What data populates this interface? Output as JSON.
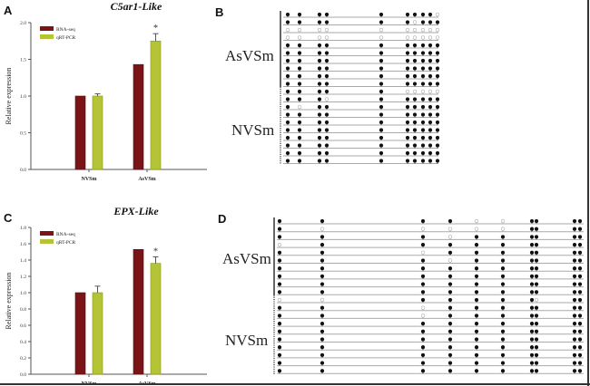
{
  "colors": {
    "rna_seq": "#7a1416",
    "qrt_pcr": "#b5c336",
    "methylated": "#111111",
    "unmethylated": "#ffffff",
    "axis": "#555555"
  },
  "panels": {
    "A": "A",
    "B": "B",
    "C": "C",
    "D": "D"
  },
  "chart_data": [
    {
      "type": "bar",
      "panel": "A",
      "title": "C5ar1-Like",
      "xlabel": "",
      "ylabel": "Relative expression",
      "categories": [
        "NVSm",
        "AsVSm"
      ],
      "ylim": [
        0,
        2.0
      ],
      "yticks": [
        "0.0",
        "0.5",
        "1.0",
        "1.5",
        "2.0"
      ],
      "ytick_values": [
        0,
        0.5,
        1.0,
        1.5,
        2.0
      ],
      "legend": [
        "RNA-seq",
        "qRT-PCR"
      ],
      "legend_position": "top-left",
      "series": [
        {
          "name": "RNA-seq",
          "values": [
            1.0,
            1.43
          ],
          "errors": [
            0,
            0
          ]
        },
        {
          "name": "qRT-PCR",
          "values": [
            1.0,
            1.75
          ],
          "errors": [
            0.03,
            0.1
          ]
        }
      ],
      "annotations": [
        {
          "category": "AsVSm",
          "series": "qRT-PCR",
          "text": "*"
        }
      ]
    },
    {
      "type": "bar",
      "panel": "C",
      "title": "EPX-Like",
      "xlabel": "",
      "ylabel": "Relative expression",
      "categories": [
        "NVSm",
        "AsVSm"
      ],
      "ylim": [
        0,
        1.8
      ],
      "yticks": [
        "0.0",
        "0.2",
        "0.4",
        "0.6",
        "0.8",
        "1.0",
        "1.2",
        "1.4",
        "1.6",
        "1.8"
      ],
      "ytick_values": [
        0,
        0.2,
        0.4,
        0.6,
        0.8,
        1.0,
        1.2,
        1.4,
        1.6,
        1.8
      ],
      "legend": [
        "RNA-seq",
        "qRT-PCR"
      ],
      "legend_position": "top-left",
      "series": [
        {
          "name": "RNA-seq",
          "values": [
            1.0,
            1.53
          ],
          "errors": [
            0,
            0
          ]
        },
        {
          "name": "qRT-PCR",
          "values": [
            1.0,
            1.36
          ],
          "errors": [
            0.08,
            0.08
          ]
        }
      ],
      "annotations": [
        {
          "category": "AsVSm",
          "series": "qRT-PCR",
          "text": "*"
        }
      ]
    },
    {
      "type": "methylation_lollipop",
      "panel": "B",
      "groups": [
        "AsVSm",
        "NVSm"
      ],
      "sites": 10,
      "note": "1 = methylated (filled), 0 = unmethylated (open)",
      "rows": [
        [
          1,
          1,
          1,
          1,
          1,
          1,
          1,
          1,
          1,
          0
        ],
        [
          1,
          1,
          1,
          1,
          1,
          1,
          0,
          1,
          1,
          1
        ],
        [
          0,
          0,
          0,
          0,
          0,
          0,
          0,
          0,
          0,
          0
        ],
        [
          0,
          0,
          0,
          0,
          0,
          0,
          0,
          0,
          0,
          0
        ],
        [
          1,
          1,
          1,
          1,
          1,
          1,
          1,
          1,
          1,
          1
        ],
        [
          1,
          1,
          1,
          1,
          1,
          1,
          1,
          1,
          1,
          1
        ],
        [
          1,
          1,
          1,
          1,
          1,
          1,
          1,
          1,
          1,
          1
        ],
        [
          1,
          1,
          1,
          1,
          1,
          1,
          1,
          1,
          1,
          1
        ],
        [
          1,
          1,
          1,
          1,
          1,
          1,
          1,
          1,
          1,
          1
        ],
        [
          1,
          1,
          1,
          1,
          1,
          1,
          1,
          1,
          1,
          1
        ],
        [
          1,
          1,
          1,
          1,
          1,
          0,
          0,
          0,
          0,
          0
        ],
        [
          1,
          1,
          1,
          0,
          1,
          1,
          1,
          1,
          1,
          1
        ],
        [
          1,
          0,
          1,
          1,
          1,
          1,
          1,
          1,
          1,
          1
        ],
        [
          1,
          1,
          1,
          1,
          1,
          1,
          1,
          1,
          1,
          1
        ],
        [
          1,
          1,
          1,
          1,
          1,
          1,
          1,
          1,
          1,
          1
        ],
        [
          1,
          1,
          1,
          1,
          1,
          1,
          1,
          1,
          1,
          1
        ],
        [
          1,
          1,
          1,
          1,
          1,
          1,
          1,
          1,
          1,
          1
        ],
        [
          1,
          1,
          1,
          1,
          1,
          1,
          1,
          1,
          1,
          1
        ],
        [
          1,
          1,
          1,
          1,
          1,
          1,
          1,
          1,
          1,
          1
        ],
        [
          1,
          1,
          1,
          1,
          1,
          1,
          1,
          1,
          1,
          1
        ]
      ]
    },
    {
      "type": "methylation_lollipop",
      "panel": "D",
      "groups": [
        "AsVSm",
        "NVSm"
      ],
      "sites": 10,
      "note": "1 = methylated (filled), 0 = unmethylated (open)",
      "rows": [
        [
          1,
          1,
          1,
          1,
          0,
          0,
          1,
          1,
          1,
          1
        ],
        [
          1,
          0,
          0,
          0,
          0,
          0,
          1,
          1,
          1,
          1
        ],
        [
          1,
          1,
          1,
          0,
          1,
          1,
          1,
          1,
          1,
          1
        ],
        [
          0,
          1,
          1,
          1,
          1,
          1,
          1,
          1,
          1,
          1
        ],
        [
          1,
          1,
          0,
          1,
          1,
          1,
          1,
          1,
          1,
          1
        ],
        [
          1,
          1,
          1,
          0,
          1,
          1,
          1,
          1,
          1,
          1
        ],
        [
          1,
          1,
          1,
          1,
          1,
          1,
          1,
          1,
          1,
          1
        ],
        [
          1,
          1,
          1,
          1,
          1,
          1,
          1,
          1,
          1,
          1
        ],
        [
          1,
          1,
          1,
          1,
          1,
          1,
          1,
          1,
          1,
          1
        ],
        [
          1,
          1,
          1,
          1,
          1,
          1,
          1,
          1,
          1,
          1
        ],
        [
          0,
          0,
          1,
          1,
          1,
          1,
          1,
          0,
          1,
          1
        ],
        [
          1,
          1,
          0,
          1,
          1,
          1,
          1,
          1,
          1,
          1
        ],
        [
          1,
          1,
          0,
          1,
          1,
          1,
          1,
          1,
          1,
          1
        ],
        [
          1,
          1,
          1,
          1,
          1,
          1,
          1,
          1,
          1,
          1
        ],
        [
          1,
          1,
          1,
          1,
          1,
          1,
          1,
          1,
          1,
          1
        ],
        [
          1,
          1,
          1,
          1,
          1,
          1,
          1,
          1,
          1,
          1
        ],
        [
          1,
          1,
          1,
          1,
          1,
          1,
          1,
          1,
          1,
          1
        ],
        [
          1,
          1,
          1,
          1,
          1,
          1,
          1,
          1,
          1,
          1
        ],
        [
          1,
          1,
          1,
          1,
          1,
          1,
          1,
          1,
          1,
          1
        ],
        [
          1,
          1,
          1,
          1,
          1,
          1,
          1,
          1,
          1,
          1
        ]
      ]
    }
  ]
}
